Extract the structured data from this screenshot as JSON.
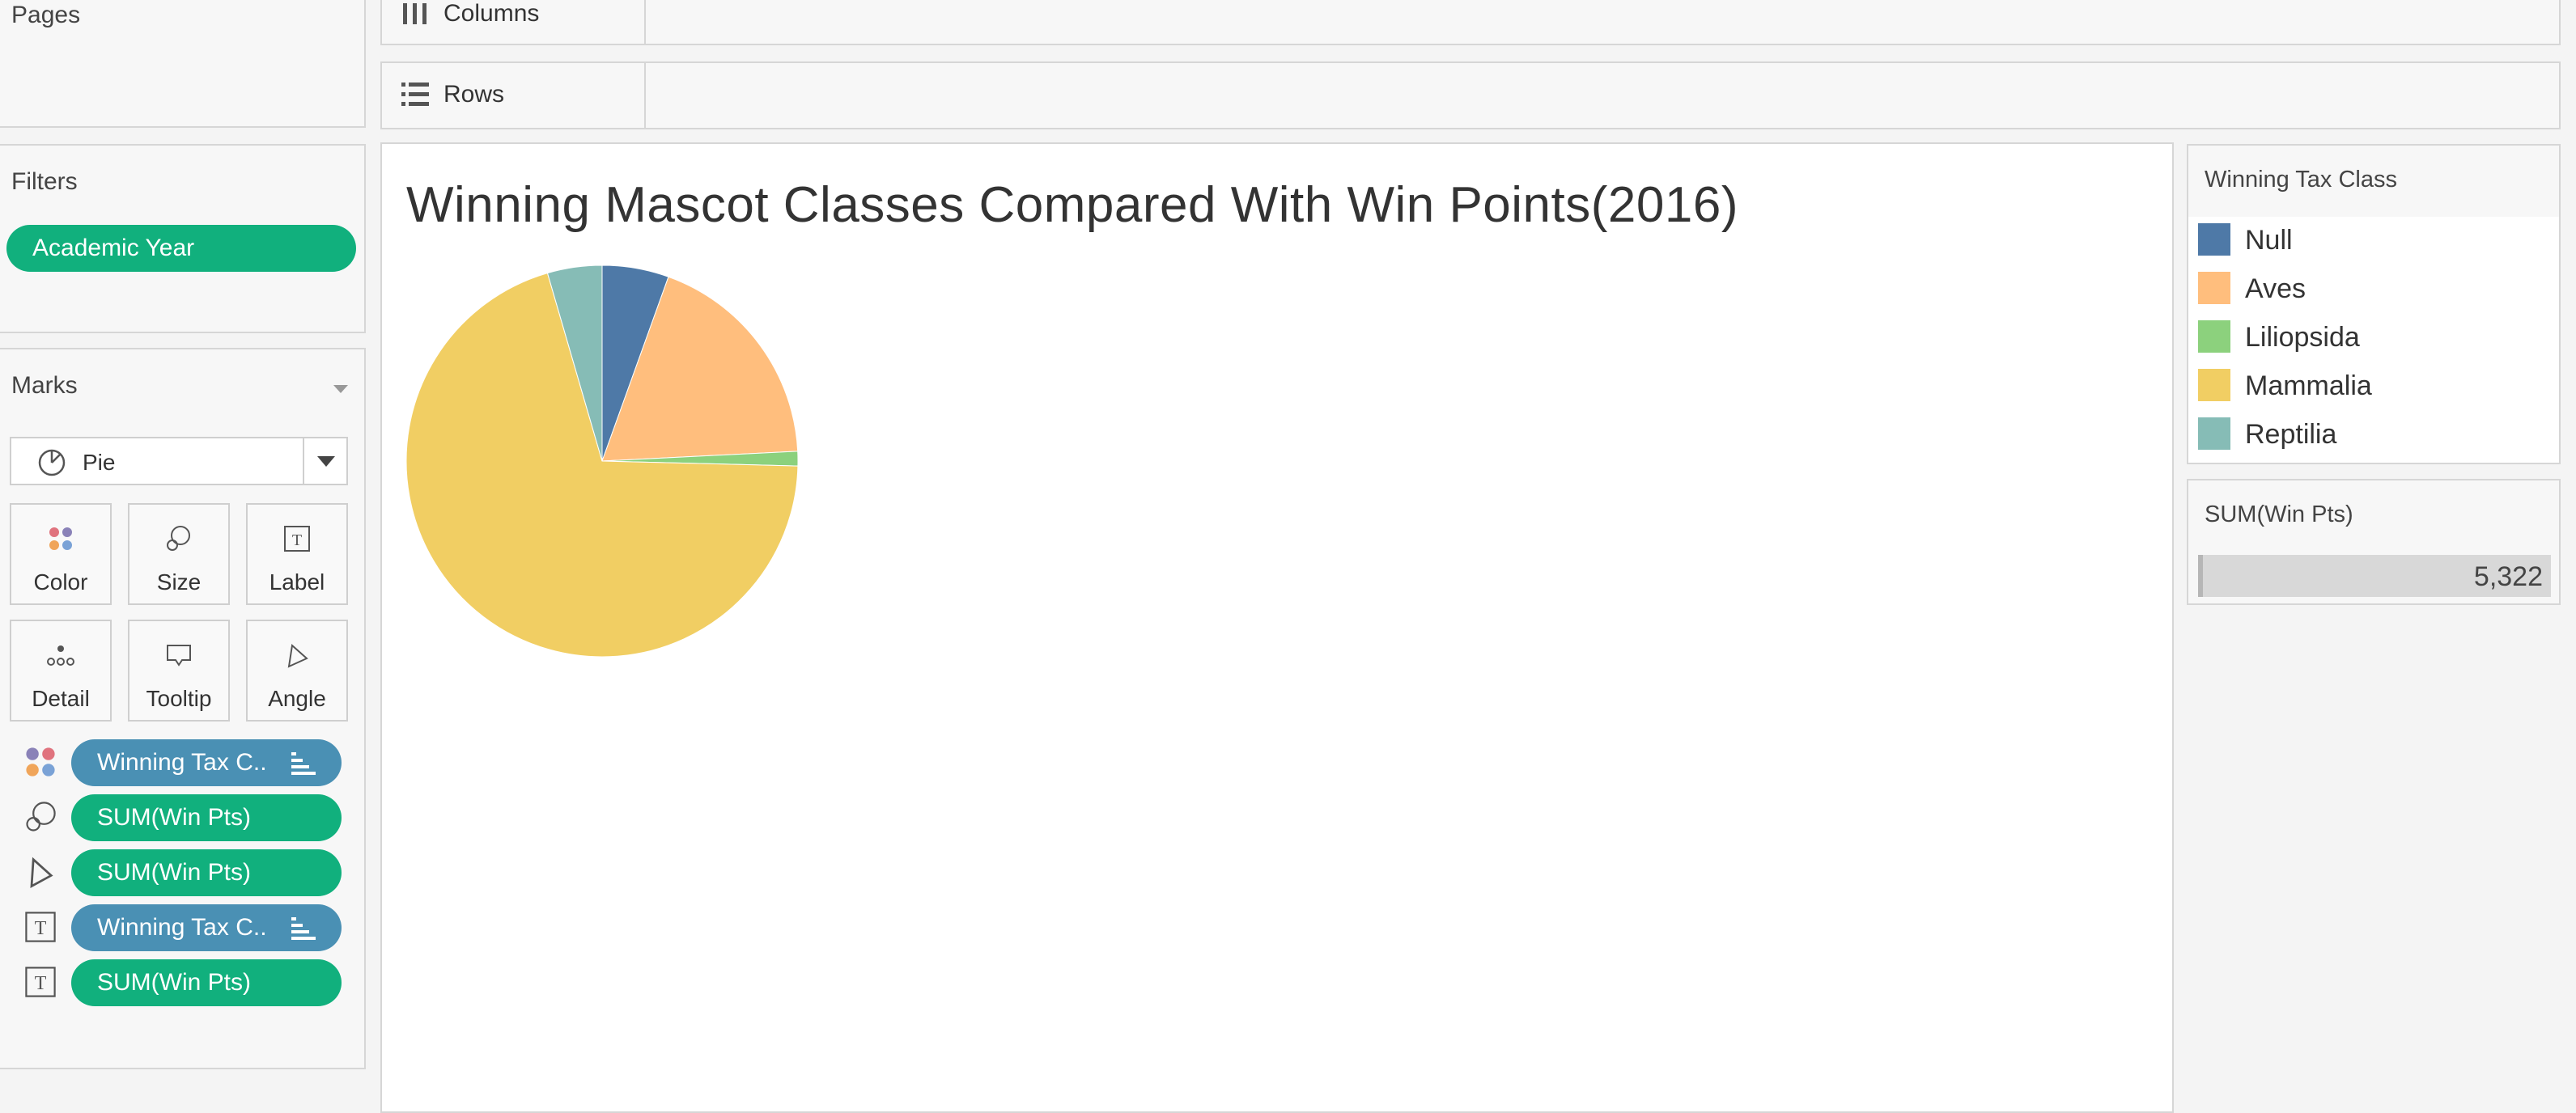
{
  "left_panels": {
    "pages": {
      "title": "Pages"
    },
    "filters": {
      "title": "Filters",
      "pills": [
        "Academic Year"
      ]
    },
    "marks": {
      "title": "Marks",
      "mark_type": "Pie",
      "buttons": [
        "Color",
        "Size",
        "Label",
        "Detail",
        "Tooltip",
        "Angle"
      ],
      "shelf_pills": [
        {
          "icon": "color-icon",
          "label": "Winning Tax C..",
          "color": "#4a90b4"
        },
        {
          "icon": "size-icon",
          "label": "SUM(Win Pts)",
          "color": "#11b07d"
        },
        {
          "icon": "angle-icon",
          "label": "SUM(Win Pts)",
          "color": "#11b07d"
        },
        {
          "icon": "label-icon",
          "label": "Winning Tax C..",
          "color": "#4a90b4"
        },
        {
          "icon": "label-icon",
          "label": "SUM(Win Pts)",
          "color": "#11b07d"
        }
      ]
    }
  },
  "shelves": {
    "columns_label": "Columns",
    "rows_label": "Rows"
  },
  "legend": {
    "title": "Winning Tax Class",
    "items": [
      {
        "name": "Null",
        "color": "#4e79a7"
      },
      {
        "name": "Aves",
        "color": "#ffbe7d"
      },
      {
        "name": "Liliopsida",
        "color": "#8cd17d"
      },
      {
        "name": "Mammalia",
        "color": "#f1ce63"
      },
      {
        "name": "Reptilia",
        "color": "#86bcb6"
      }
    ]
  },
  "size_legend": {
    "title": "SUM(Win Pts)",
    "value": "5,322"
  },
  "chart_data": {
    "type": "pie",
    "title": "Winning Mascot Classes Compared With Win Points(2016)",
    "total_label": "5,322",
    "slices": [
      {
        "category": "Null",
        "value": 5.5,
        "color": "#4e79a7"
      },
      {
        "category": "Aves",
        "value": 18.7,
        "color": "#ffbe7d"
      },
      {
        "category": "Liliopsida",
        "value": 1.2,
        "color": "#8cd17d"
      },
      {
        "category": "Mammalia",
        "value": 70.1,
        "color": "#f1ce63"
      },
      {
        "category": "Reptilia",
        "value": 4.5,
        "color": "#86bcb6"
      }
    ]
  }
}
